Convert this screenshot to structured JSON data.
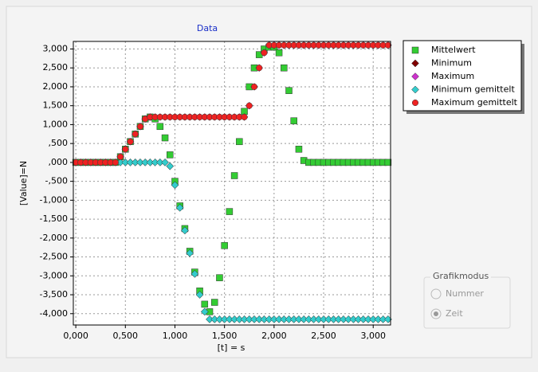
{
  "chart_data": {
    "type": "scatter",
    "title": "Data",
    "xlabel": "[t] = s",
    "ylabel": "[Value]=N",
    "x": [
      0,
      0.05,
      0.1,
      0.15,
      0.2,
      0.25,
      0.3,
      0.35,
      0.4,
      0.45,
      0.5,
      0.55,
      0.6,
      0.65,
      0.7,
      0.75,
      0.8,
      0.85,
      0.9,
      0.95,
      1,
      1.05,
      1.1,
      1.15,
      1.2,
      1.25,
      1.3,
      1.35,
      1.4,
      1.45,
      1.5,
      1.55,
      1.6,
      1.65,
      1.7,
      1.75,
      1.8,
      1.85,
      1.9,
      1.95,
      2,
      2.05,
      2.1,
      2.15,
      2.2,
      2.25,
      2.3,
      2.35,
      2.4,
      2.45,
      2.5,
      2.55,
      2.6,
      2.65,
      2.7,
      2.75,
      2.8,
      2.85,
      2.9,
      2.95,
      3,
      3.05,
      3.1,
      3.15
    ],
    "series": [
      {
        "name": "Mittelwert",
        "color": "#33cc33",
        "marker": "square",
        "values": [
          0,
          0,
          0,
          0,
          0,
          0,
          0,
          0,
          0,
          150,
          350,
          550,
          750,
          950,
          1150,
          1200,
          1150,
          950,
          650,
          200,
          -500,
          -1150,
          -1750,
          -2350,
          -2900,
          -3400,
          -3750,
          -3950,
          -3700,
          -3050,
          -2200,
          -1300,
          -350,
          550,
          1350,
          2000,
          2500,
          2850,
          3000,
          3050,
          3050,
          2900,
          2500,
          1900,
          1100,
          350,
          50,
          0,
          0,
          0,
          0,
          0,
          0,
          0,
          0,
          0,
          0,
          0,
          0,
          0,
          0,
          0,
          0,
          0
        ]
      },
      {
        "name": "Minimum",
        "color": "#800000",
        "marker": "diamond",
        "values": [
          0,
          0,
          0,
          0,
          0,
          0,
          0,
          0,
          0,
          0,
          0,
          0,
          0,
          0,
          0,
          0,
          0,
          0,
          0,
          -100,
          -600,
          -1200,
          -1800,
          -2400,
          -2950,
          -3500,
          -3950,
          -4150,
          -4150,
          -4150,
          -4150,
          -4150,
          -4150,
          -4150,
          -4150,
          -4150,
          -4150,
          -4150,
          -4150,
          -4150,
          -4150,
          -4150,
          -4150,
          -4150,
          -4150,
          -4150,
          -4150,
          -4150,
          -4150,
          -4150,
          -4150,
          -4150,
          -4150,
          -4150,
          -4150,
          -4150,
          -4150,
          -4150,
          -4150,
          -4150,
          -4150,
          -4150,
          -4150,
          -4150
        ]
      },
      {
        "name": "Maximum",
        "color": "#cc33cc",
        "marker": "diamond",
        "values": [
          0,
          0,
          0,
          0,
          0,
          0,
          0,
          0,
          0,
          150,
          350,
          550,
          750,
          950,
          1150,
          1200,
          1200,
          1200,
          1200,
          1200,
          1200,
          1200,
          1200,
          1200,
          1200,
          1200,
          1200,
          1200,
          1200,
          1200,
          1200,
          1200,
          1200,
          1200,
          1200,
          1500,
          2000,
          2500,
          2900,
          3100,
          3100,
          3100,
          3100,
          3100,
          3100,
          3100,
          3100,
          3100,
          3100,
          3100,
          3100,
          3100,
          3100,
          3100,
          3100,
          3100,
          3100,
          3100,
          3100,
          3100,
          3100,
          3100,
          3100,
          3100
        ]
      },
      {
        "name": "Minimum gemittelt",
        "color": "#33cccc",
        "marker": "diamond",
        "values": [
          0,
          0,
          0,
          0,
          0,
          0,
          0,
          0,
          0,
          0,
          0,
          0,
          0,
          0,
          0,
          0,
          0,
          0,
          0,
          -100,
          -600,
          -1200,
          -1800,
          -2400,
          -2950,
          -3500,
          -3950,
          -4150,
          -4150,
          -4150,
          -4150,
          -4150,
          -4150,
          -4150,
          -4150,
          -4150,
          -4150,
          -4150,
          -4150,
          -4150,
          -4150,
          -4150,
          -4150,
          -4150,
          -4150,
          -4150,
          -4150,
          -4150,
          -4150,
          -4150,
          -4150,
          -4150,
          -4150,
          -4150,
          -4150,
          -4150,
          -4150,
          -4150,
          -4150,
          -4150,
          -4150,
          -4150,
          -4150,
          -4150
        ]
      },
      {
        "name": "Maximum gemittelt",
        "color": "#ee2222",
        "marker": "circle",
        "values": [
          0,
          0,
          0,
          0,
          0,
          0,
          0,
          0,
          0,
          150,
          350,
          550,
          750,
          950,
          1150,
          1200,
          1200,
          1200,
          1200,
          1200,
          1200,
          1200,
          1200,
          1200,
          1200,
          1200,
          1200,
          1200,
          1200,
          1200,
          1200,
          1200,
          1200,
          1200,
          1200,
          1500,
          2000,
          2500,
          2900,
          3100,
          3100,
          3100,
          3100,
          3100,
          3100,
          3100,
          3100,
          3100,
          3100,
          3100,
          3100,
          3100,
          3100,
          3100,
          3100,
          3100,
          3100,
          3100,
          3100,
          3100,
          3100,
          3100,
          3100,
          3100
        ]
      }
    ],
    "xlim": [
      -0.025,
      3.175
    ],
    "xticks": [
      {
        "value": 0,
        "label": "0,000"
      },
      {
        "value": 0.5,
        "label": "0,500"
      },
      {
        "value": 1,
        "label": "1,000"
      },
      {
        "value": 1.5,
        "label": "1,500"
      },
      {
        "value": 2,
        "label": "2,000"
      },
      {
        "value": 2.5,
        "label": "2,500"
      },
      {
        "value": 3,
        "label": "3,000"
      }
    ],
    "ylim": [
      -4300,
      3200
    ],
    "yticks": [
      {
        "value": 3000,
        "label": "3,000"
      },
      {
        "value": 2500,
        "label": "2,500"
      },
      {
        "value": 2000,
        "label": "2,000"
      },
      {
        "value": 1500,
        "label": "1,500"
      },
      {
        "value": 1000,
        "label": "1,000"
      },
      {
        "value": 500,
        "label": ",500"
      },
      {
        "value": 0,
        "label": ",000"
      },
      {
        "value": -500,
        "label": "-,500"
      },
      {
        "value": -1000,
        "label": "-1,000"
      },
      {
        "value": -1500,
        "label": "-1,500"
      },
      {
        "value": -2000,
        "label": "-2,000"
      },
      {
        "value": -2500,
        "label": "-2,500"
      },
      {
        "value": -3000,
        "label": "-3,000"
      },
      {
        "value": -3500,
        "label": "-3,500"
      },
      {
        "value": -4000,
        "label": "-4,000"
      }
    ],
    "grid": true,
    "legend": "right"
  },
  "controls": {
    "title": "Grafikmodus",
    "options": [
      "Nummer",
      "Zeit"
    ]
  }
}
